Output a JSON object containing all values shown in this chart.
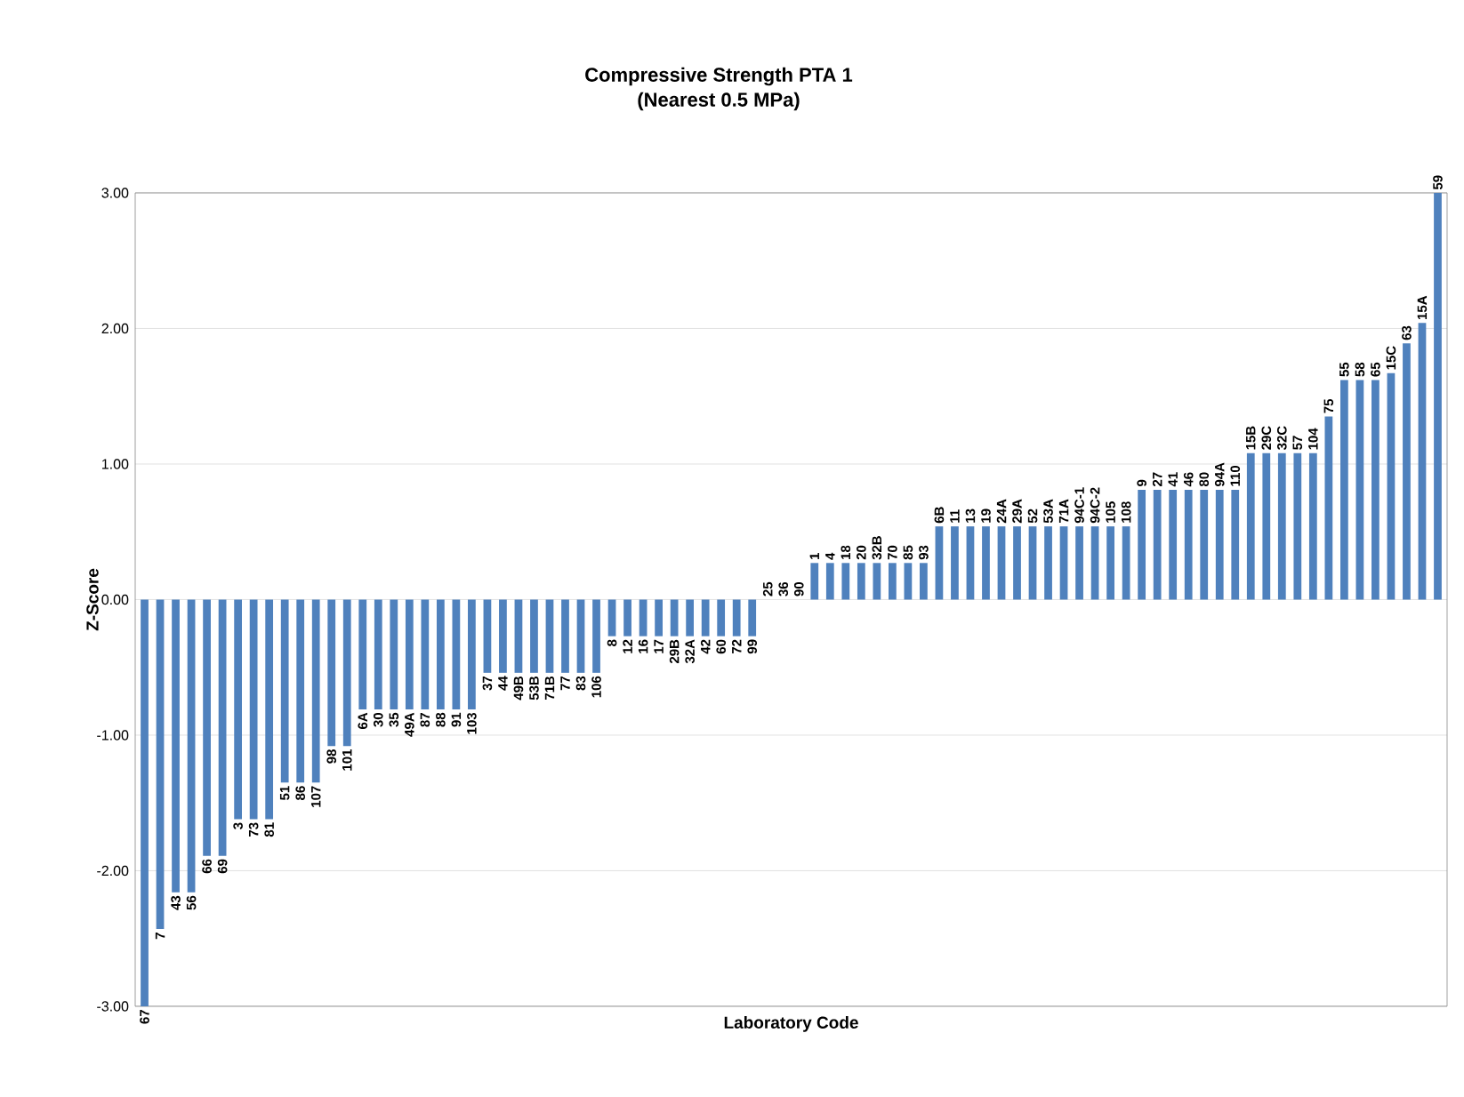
{
  "chart_data": {
    "type": "bar",
    "title": "Compressive Strength PTA 1",
    "subtitle": "(Nearest 0.5 MPa)",
    "xlabel": "Laboratory Code",
    "ylabel": "Z-Score",
    "categories": [
      "67",
      "7",
      "43",
      "56",
      "66",
      "69",
      "3",
      "73",
      "81",
      "51",
      "86",
      "107",
      "98",
      "101",
      "6A",
      "30",
      "35",
      "49A",
      "87",
      "88",
      "91",
      "103",
      "37",
      "44",
      "49B",
      "53B",
      "71B",
      "77",
      "83",
      "106",
      "8",
      "12",
      "16",
      "17",
      "29B",
      "32A",
      "42",
      "60",
      "72",
      "99",
      "25",
      "36",
      "90",
      "1",
      "4",
      "18",
      "20",
      "32B",
      "70",
      "85",
      "93",
      "6B",
      "11",
      "13",
      "19",
      "24A",
      "29A",
      "52",
      "53A",
      "71A",
      "94C-1",
      "94C-2",
      "105",
      "108",
      "9",
      "27",
      "41",
      "46",
      "80",
      "94A",
      "110",
      "15B",
      "29C",
      "32C",
      "57",
      "104",
      "75",
      "55",
      "58",
      "65",
      "15C",
      "63",
      "15A",
      "59"
    ],
    "values": [
      -3.0,
      -2.43,
      -2.16,
      -2.16,
      -1.89,
      -1.89,
      -1.62,
      -1.62,
      -1.62,
      -1.35,
      -1.35,
      -1.35,
      -1.08,
      -1.08,
      -0.81,
      -0.81,
      -0.81,
      -0.81,
      -0.81,
      -0.81,
      -0.81,
      -0.81,
      -0.54,
      -0.54,
      -0.54,
      -0.54,
      -0.54,
      -0.54,
      -0.54,
      -0.54,
      -0.27,
      -0.27,
      -0.27,
      -0.27,
      -0.27,
      -0.27,
      -0.27,
      -0.27,
      -0.27,
      -0.27,
      0,
      0,
      0,
      0.27,
      0.27,
      0.27,
      0.27,
      0.27,
      0.27,
      0.27,
      0.27,
      0.54,
      0.54,
      0.54,
      0.54,
      0.54,
      0.54,
      0.54,
      0.54,
      0.54,
      0.54,
      0.54,
      0.54,
      0.54,
      0.81,
      0.81,
      0.81,
      0.81,
      0.81,
      0.81,
      0.81,
      1.08,
      1.08,
      1.08,
      1.08,
      1.08,
      1.35,
      1.62,
      1.62,
      1.62,
      1.67,
      1.89,
      2.04,
      3.0
    ],
    "color": "#4f81bd",
    "ylim": [
      -3,
      3
    ],
    "yticks": [
      {
        "value": -3,
        "label": "-3.00"
      },
      {
        "value": -2,
        "label": "-2.00"
      },
      {
        "value": -1,
        "label": "-1.00"
      },
      {
        "value": 0,
        "label": "0.00"
      },
      {
        "value": 1,
        "label": "1.00"
      },
      {
        "value": 2,
        "label": "2.00"
      },
      {
        "value": 3,
        "label": "3.00"
      }
    ],
    "grid": "y"
  }
}
